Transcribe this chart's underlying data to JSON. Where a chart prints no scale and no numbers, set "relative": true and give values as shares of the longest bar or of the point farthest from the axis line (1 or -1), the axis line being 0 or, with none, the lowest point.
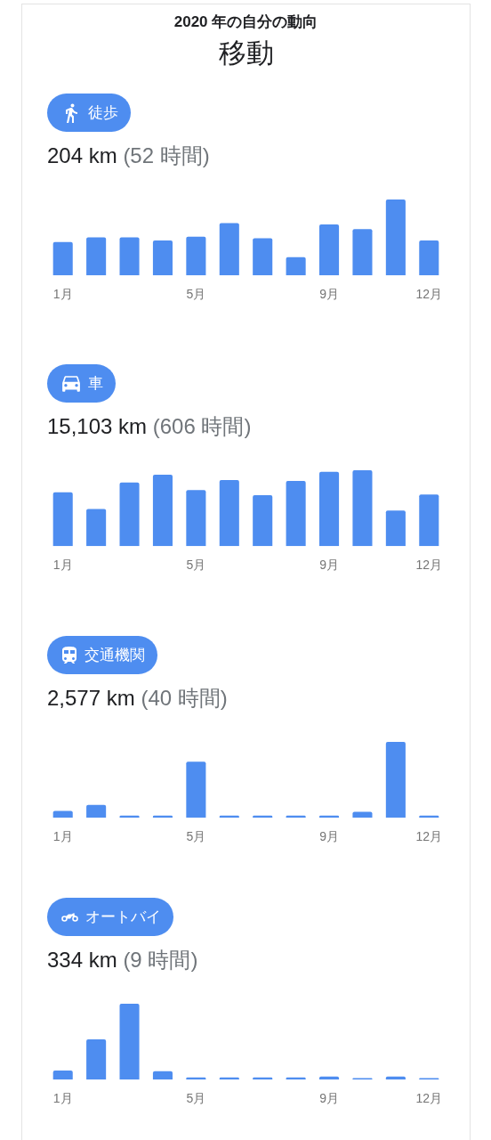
{
  "chart_data": [
    {
      "type": "other",
      "subtitle": "2020 年の自分の動向",
      "title": "移動"
    },
    {
      "type": "bar",
      "title": "徒歩",
      "subtitle": "204 km (52 時間)",
      "categories": [
        "1月",
        null,
        null,
        null,
        "5月",
        null,
        null,
        null,
        "9月",
        null,
        null,
        "12月"
      ],
      "values": [
        0.44,
        0.5,
        0.5,
        0.46,
        0.51,
        0.69,
        0.49,
        0.24,
        0.67,
        0.61,
        1,
        0.46
      ],
      "color": "#4e8df0",
      "relative": true
    },
    {
      "type": "bar",
      "title": "車",
      "subtitle": "15,103 km (606 時間)",
      "categories": [
        "1月",
        null,
        null,
        null,
        "5月",
        null,
        null,
        null,
        "9月",
        null,
        null,
        "12月"
      ],
      "values": [
        0.71,
        0.49,
        0.84,
        0.94,
        0.74,
        0.87,
        0.67,
        0.86,
        0.98,
        1,
        0.47,
        0.68
      ],
      "color": "#4e8df0",
      "relative": true
    },
    {
      "type": "bar",
      "title": "交通機関",
      "subtitle": "2,577 km (40 時間)",
      "categories": [
        "1月",
        null,
        null,
        null,
        "5月",
        null,
        null,
        null,
        "9月",
        null,
        null,
        "12月"
      ],
      "values": [
        0.09,
        0.17,
        0.03,
        0.03,
        0.74,
        0.03,
        0.03,
        0.03,
        0.03,
        0.08,
        1,
        0.03
      ],
      "color": "#4e8df0",
      "relative": true
    },
    {
      "type": "bar",
      "title": "オートバイ",
      "subtitle": "334 km (9 時間)",
      "categories": [
        "1月",
        null,
        null,
        null,
        "5月",
        null,
        null,
        null,
        "9月",
        null,
        null,
        "12月"
      ],
      "values": [
        0.12,
        0.53,
        1,
        0.11,
        0.03,
        0.03,
        0.03,
        0.03,
        0.04,
        0.02,
        0.04,
        0.02
      ],
      "color": "#4e8df0",
      "relative": true
    }
  ]
}
